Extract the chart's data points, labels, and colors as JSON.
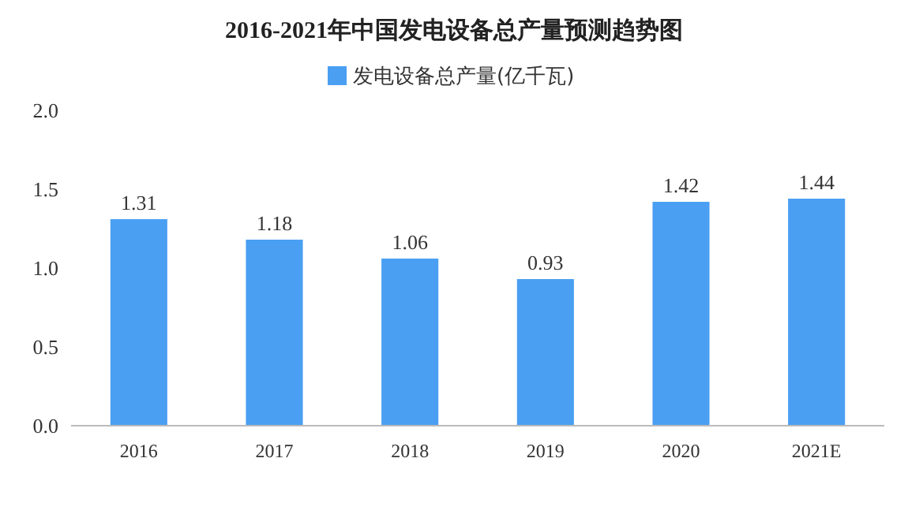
{
  "chart_data": {
    "type": "bar",
    "title": "2016-2021年中国发电设备总产量预测趋势图",
    "categories": [
      "2016",
      "2017",
      "2018",
      "2019",
      "2020",
      "2021E"
    ],
    "series": [
      {
        "name": "发电设备总产量(亿千瓦)",
        "color": "#4a9ff2",
        "values": [
          1.31,
          1.18,
          1.06,
          0.93,
          1.42,
          1.44
        ]
      }
    ],
    "ylim": [
      0,
      2
    ],
    "yticks": [
      {
        "value": 0,
        "label": "0.0"
      },
      {
        "value": 0.5,
        "label": "0.5"
      },
      {
        "value": 1,
        "label": "1.0"
      },
      {
        "value": 1.5,
        "label": "1.5"
      },
      {
        "value": 2,
        "label": "2.0"
      }
    ],
    "data_labels": true,
    "legend": "top",
    "grid": false
  }
}
